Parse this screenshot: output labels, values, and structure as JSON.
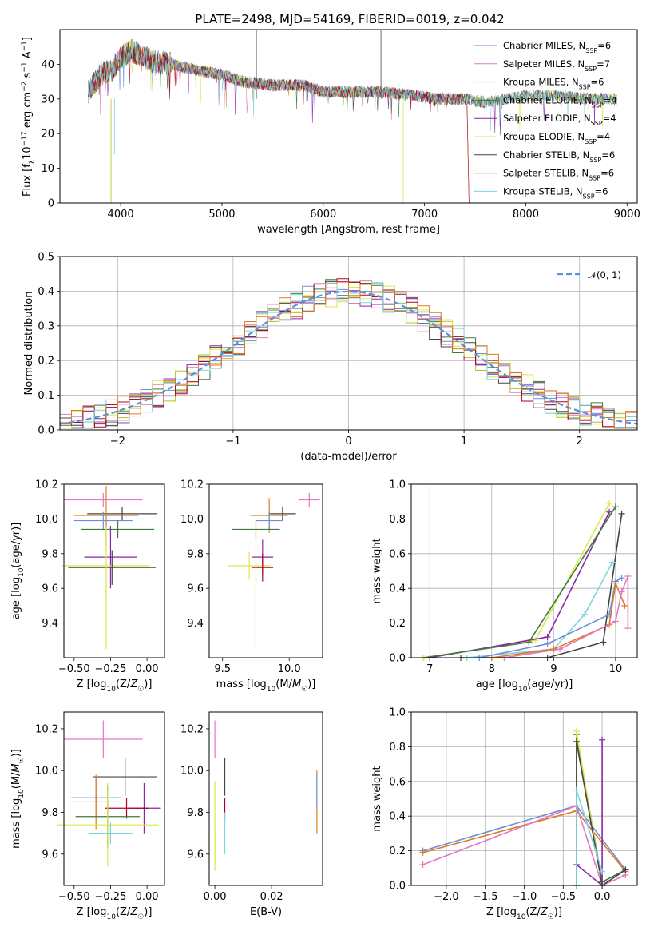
{
  "title": "PLATE=2498, MJD=54169, FIBERID=0019, z=0.042",
  "colors": {
    "Chabrier MILES": "#6b8fd6",
    "Salpeter MILES": "#e377c2",
    "Kroupa MILES": "#bcbd22",
    "Chabrier ELODIE": "#3d7a3d",
    "Salpeter ELODIE": "#8e24aa",
    "Kroupa ELODIE": "#dbe84a",
    "Chabrier STELIB": "#444444",
    "Salpeter STELIB": "#b0001e",
    "Kroupa STELIB": "#7fd3e0",
    "orange": "#e07a1f",
    "normal": "#5b8fd9"
  },
  "chart_data": [
    {
      "type": "line",
      "xlabel": "wavelength [Angstrom, rest frame]",
      "ylabel": "Flux [f_λ10^-17 erg cm^-2 s^-1 A^-1]",
      "xlim": [
        3400,
        9100
      ],
      "ylim": [
        0,
        50
      ],
      "xticks": [
        "4000",
        "5000",
        "6000",
        "7000",
        "8000",
        "9000"
      ],
      "yticks": [
        "0",
        "10",
        "20",
        "30",
        "40"
      ],
      "grid": false,
      "legend_position": "top-right",
      "legend": [
        "Chabrier MILES, N_SSP=6",
        "Salpeter MILES, N_SSP=7",
        "Kroupa MILES, N_SSP=6",
        "Chabrier ELODIE, N_SSP=4",
        "Salpeter ELODIE, N_SSP=4",
        "Kroupa ELODIE, N_SSP=4",
        "Chabrier STELIB, N_SSP=6",
        "Salpeter STELIB, N_SSP=6",
        "Kroupa STELIB, N_SSP=6"
      ],
      "series_shape": {
        "x": [
          3700,
          3800,
          3900,
          4000,
          4100,
          4300,
          4500,
          4800,
          5000,
          5200,
          5500,
          5800,
          6000,
          6300,
          6600,
          6900,
          7100,
          7400,
          7600,
          7800,
          8000,
          8300,
          8600,
          8900
        ],
        "y": [
          33,
          37,
          38,
          42,
          44,
          41,
          40,
          38,
          37,
          35,
          34,
          34,
          32,
          32,
          32,
          31,
          30,
          30,
          29,
          30,
          31,
          31,
          30,
          30
        ]
      }
    },
    {
      "type": "bar",
      "xlabel": "(data-model)/error",
      "ylabel": "Normed distribution",
      "xlim": [
        -2.5,
        2.5
      ],
      "ylim": [
        0,
        0.5
      ],
      "xticks": [
        "−2",
        "−1",
        "0",
        "1",
        "2"
      ],
      "yticks": [
        "0.0",
        "0.1",
        "0.2",
        "0.3",
        "0.4",
        "0.5"
      ],
      "grid": true,
      "legend_position": "top-right",
      "legend": [
        "𝒩(0, 1)"
      ],
      "bin_width": 0.1
    },
    {
      "type": "scatter",
      "xlabel": "Z [log10(Z/Z☉)]",
      "ylabel": "age  [log10(age/yr)]",
      "xlim": [
        -0.57,
        0.12
      ],
      "ylim": [
        9.2,
        10.2
      ],
      "xticks": [
        "−0.50",
        "−0.25",
        "0.00"
      ],
      "yticks": [
        "9.4",
        "9.6",
        "9.8",
        "10.0",
        "10.2"
      ],
      "points": [
        {
          "x": -0.3,
          "y": 10.11,
          "xerr": 0.27,
          "yerr": 0.04,
          "c": "Salpeter MILES"
        },
        {
          "x": -0.17,
          "y": 10.03,
          "xerr": 0.24,
          "yerr": 0.04,
          "c": "Chabrier STELIB"
        },
        {
          "x": -0.28,
          "y": 10.02,
          "xerr": 0.22,
          "yerr": 0.17,
          "c": "orange"
        },
        {
          "x": -0.3,
          "y": 9.99,
          "xerr": 0.2,
          "yerr": 0.05,
          "c": "Chabrier MILES"
        },
        {
          "x": -0.2,
          "y": 9.94,
          "xerr": 0.25,
          "yerr": 0.05,
          "c": "Chabrier ELODIE"
        },
        {
          "x": -0.25,
          "y": 9.78,
          "xerr": 0.18,
          "yerr": 0.18,
          "c": "Salpeter ELODIE"
        },
        {
          "x": -0.28,
          "y": 9.73,
          "xerr": 0.3,
          "yerr": 0.18,
          "c": "Kroupa ELODIE"
        },
        {
          "x": -0.24,
          "y": 9.72,
          "xerr": 0.3,
          "yerr": 0.1,
          "c": "Chabrier STELIB"
        },
        {
          "x": -0.28,
          "y": 9.6,
          "xerr": 0.0,
          "yerr": 0.35,
          "c": "Kroupa ELODIE"
        }
      ]
    },
    {
      "type": "scatter",
      "xlabel": "mass [log10(M/M☉)]",
      "ylabel": "",
      "xlim": [
        9.4,
        10.25
      ],
      "ylim": [
        9.2,
        10.2
      ],
      "xticks": [
        "9.5",
        "10.0"
      ],
      "yticks": [
        "9.4",
        "9.6",
        "9.8",
        "10.0",
        "10.2"
      ],
      "points": [
        {
          "x": 10.15,
          "y": 10.11,
          "xerr": 0.08,
          "yerr": 0.04,
          "c": "Salpeter MILES"
        },
        {
          "x": 9.95,
          "y": 10.03,
          "xerr": 0.1,
          "yerr": 0.04,
          "c": "Chabrier STELIB"
        },
        {
          "x": 9.85,
          "y": 10.02,
          "xerr": 0.14,
          "yerr": 0.1,
          "c": "orange"
        },
        {
          "x": 9.85,
          "y": 9.99,
          "xerr": 0.1,
          "yerr": 0.05,
          "c": "Chabrier MILES"
        },
        {
          "x": 9.75,
          "y": 9.94,
          "xerr": 0.18,
          "yerr": 0.05,
          "c": "Chabrier ELODIE"
        },
        {
          "x": 9.8,
          "y": 9.78,
          "xerr": 0.08,
          "yerr": 0.1,
          "c": "Salpeter ELODIE"
        },
        {
          "x": 9.7,
          "y": 9.73,
          "xerr": 0.16,
          "yerr": 0.08,
          "c": "Kroupa ELODIE"
        },
        {
          "x": 9.8,
          "y": 9.72,
          "xerr": 0.08,
          "yerr": 0.08,
          "c": "Salpeter STELIB"
        },
        {
          "x": 9.75,
          "y": 9.6,
          "xerr": 0.0,
          "yerr": 0.35,
          "c": "Kroupa ELODIE"
        }
      ]
    },
    {
      "type": "line",
      "xlabel": "age  [log10(age/yr)]",
      "ylabel": "mass weight",
      "xlim": [
        6.7,
        10.35
      ],
      "ylim": [
        0,
        1
      ],
      "xticks": [
        "7",
        "8",
        "9",
        "10"
      ],
      "yticks": [
        "0.0",
        "0.2",
        "0.4",
        "0.6",
        "0.8",
        "1.0"
      ],
      "grid": true,
      "series": [
        {
          "c": "Kroupa ELODIE",
          "x": [
            6.9,
            8.7,
            9.9
          ],
          "y": [
            0.0,
            0.1,
            0.89
          ]
        },
        {
          "c": "Salpeter ELODIE",
          "x": [
            7.0,
            8.9,
            9.9
          ],
          "y": [
            0.0,
            0.12,
            0.84
          ]
        },
        {
          "c": "Chabrier ELODIE",
          "x": [
            6.9,
            8.6,
            10.0
          ],
          "y": [
            0.0,
            0.09,
            0.87
          ]
        },
        {
          "c": "Chabrier STELIB",
          "x": [
            7.5,
            8.9,
            9.8,
            10.1
          ],
          "y": [
            0.0,
            0.0,
            0.09,
            0.83
          ]
        },
        {
          "c": "Kroupa STELIB",
          "x": [
            7.6,
            9.0,
            9.5,
            9.95
          ],
          "y": [
            0.0,
            0.05,
            0.25,
            0.55
          ]
        },
        {
          "c": "Chabrier MILES",
          "x": [
            7.8,
            8.9,
            9.9,
            10.0,
            10.1
          ],
          "y": [
            0.0,
            0.08,
            0.25,
            0.44,
            0.46
          ]
        },
        {
          "c": "orange",
          "x": [
            8.0,
            9.0,
            9.9,
            10.0,
            10.15
          ],
          "y": [
            0.0,
            0.05,
            0.19,
            0.43,
            0.3
          ]
        },
        {
          "c": "Salpeter MILES",
          "x": [
            8.2,
            9.1,
            10.0,
            10.1,
            10.2,
            10.2
          ],
          "y": [
            0.0,
            0.05,
            0.21,
            0.38,
            0.47,
            0.17
          ]
        },
        {
          "c": "Kroupa ELODIE",
          "x": [
            6.9
          ],
          "y": [
            0.0
          ]
        }
      ]
    },
    {
      "type": "scatter",
      "xlabel": "Z [log10(Z/Z☉)]",
      "ylabel": "mass [log10(M/M☉)]",
      "xlim": [
        -0.57,
        0.12
      ],
      "ylim": [
        9.45,
        10.28
      ],
      "xticks": [
        "−0.50",
        "−0.25",
        "0.00"
      ],
      "yticks": [
        "9.6",
        "9.8",
        "10.0",
        "10.2"
      ],
      "points": [
        {
          "x": -0.3,
          "y": 10.15,
          "xerr": 0.27,
          "yerr": 0.09,
          "c": "Salpeter MILES"
        },
        {
          "x": -0.15,
          "y": 9.97,
          "xerr": 0.22,
          "yerr": 0.09,
          "c": "Chabrier STELIB"
        },
        {
          "x": -0.35,
          "y": 9.87,
          "xerr": 0.17,
          "yerr": 0.1,
          "c": "Chabrier MILES"
        },
        {
          "x": -0.35,
          "y": 9.85,
          "xerr": 0.17,
          "yerr": 0.13,
          "c": "orange"
        },
        {
          "x": -0.02,
          "y": 9.82,
          "xerr": 0.11,
          "yerr": 0.12,
          "c": "Salpeter ELODIE"
        },
        {
          "x": -0.14,
          "y": 9.82,
          "xerr": 0.15,
          "yerr": 0.05,
          "c": "Salpeter STELIB"
        },
        {
          "x": -0.27,
          "y": 9.78,
          "xerr": 0.22,
          "yerr": 0.15,
          "c": "Chabrier ELODIE"
        },
        {
          "x": -0.27,
          "y": 9.74,
          "xerr": 0.35,
          "yerr": 0.2,
          "c": "Kroupa ELODIE"
        },
        {
          "x": -0.25,
          "y": 9.7,
          "xerr": 0.15,
          "yerr": 0.05,
          "c": "Kroupa STELIB"
        }
      ]
    },
    {
      "type": "scatter",
      "xlabel": "E(B-V)",
      "ylabel": "",
      "xlim": [
        -0.002,
        0.038
      ],
      "ylim": [
        9.45,
        10.28
      ],
      "xticks": [
        "0.00",
        "0.02"
      ],
      "yticks": [
        "9.6",
        "9.8",
        "10.0",
        "10.2"
      ],
      "points": [
        {
          "x": 0.0,
          "y": 10.15,
          "xerr": 0,
          "yerr": 0.09,
          "c": "Salpeter MILES"
        },
        {
          "x": 0.0,
          "y": 9.75,
          "xerr": 0,
          "yerr": 0.2,
          "c": "Kroupa ELODIE"
        },
        {
          "x": 0.0,
          "y": 9.62,
          "xerr": 0,
          "yerr": 0.1,
          "c": "Kroupa ELODIE"
        },
        {
          "x": 0.0035,
          "y": 9.97,
          "xerr": 0,
          "yerr": 0.09,
          "c": "Chabrier STELIB"
        },
        {
          "x": 0.0035,
          "y": 9.82,
          "xerr": 0,
          "yerr": 0.05,
          "c": "Salpeter STELIB"
        },
        {
          "x": 0.0035,
          "y": 9.7,
          "xerr": 0,
          "yerr": 0.1,
          "c": "Kroupa STELIB"
        },
        {
          "x": 0.036,
          "y": 9.85,
          "xerr": 0,
          "yerr": 0.15,
          "c": "orange"
        },
        {
          "x": 0.036,
          "y": 9.9,
          "xerr": 0,
          "yerr": 0.08,
          "c": "Chabrier MILES"
        }
      ]
    },
    {
      "type": "line",
      "xlabel": "Z [log10(Z/Z☉)]",
      "ylabel": "mass weight",
      "xlim": [
        -2.45,
        0.45
      ],
      "ylim": [
        0,
        1
      ],
      "xticks": [
        "−2.0",
        "−1.5",
        "−1.0",
        "−0.5",
        "0.0"
      ],
      "yticks": [
        "0.0",
        "0.2",
        "0.4",
        "0.6",
        "0.8",
        "1.0"
      ],
      "grid": true,
      "series": [
        {
          "c": "Chabrier MILES",
          "x": [
            -2.3,
            -0.33,
            0.3
          ],
          "y": [
            0.2,
            0.46,
            0.09
          ]
        },
        {
          "c": "orange",
          "x": [
            -2.3,
            -0.33,
            0.3
          ],
          "y": [
            0.19,
            0.43,
            0.08
          ]
        },
        {
          "c": "Salpeter MILES",
          "x": [
            -2.3,
            -0.33,
            0.0,
            0.3
          ],
          "y": [
            0.12,
            0.46,
            0.0,
            0.06
          ]
        },
        {
          "c": "Chabrier ELODIE",
          "x": [
            -0.33,
            -0.33,
            0.0,
            0.3
          ],
          "y": [
            0.0,
            0.87,
            0.02,
            0.09
          ]
        },
        {
          "c": "Salpeter ELODIE",
          "x": [
            -0.33,
            0.0,
            0.0
          ],
          "y": [
            0.12,
            0.0,
            0.84
          ]
        },
        {
          "c": "Kroupa ELODIE",
          "x": [
            -0.33,
            -0.33,
            0.0
          ],
          "y": [
            0.0,
            0.89,
            0.0
          ]
        },
        {
          "c": "Chabrier STELIB",
          "x": [
            -0.33,
            -0.33,
            0.0,
            0.3
          ],
          "y": [
            0.0,
            0.83,
            0.0,
            0.09
          ]
        },
        {
          "c": "Kroupa STELIB",
          "x": [
            -0.33,
            -0.33,
            0.0
          ],
          "y": [
            0.0,
            0.55,
            0.08
          ]
        }
      ]
    }
  ]
}
